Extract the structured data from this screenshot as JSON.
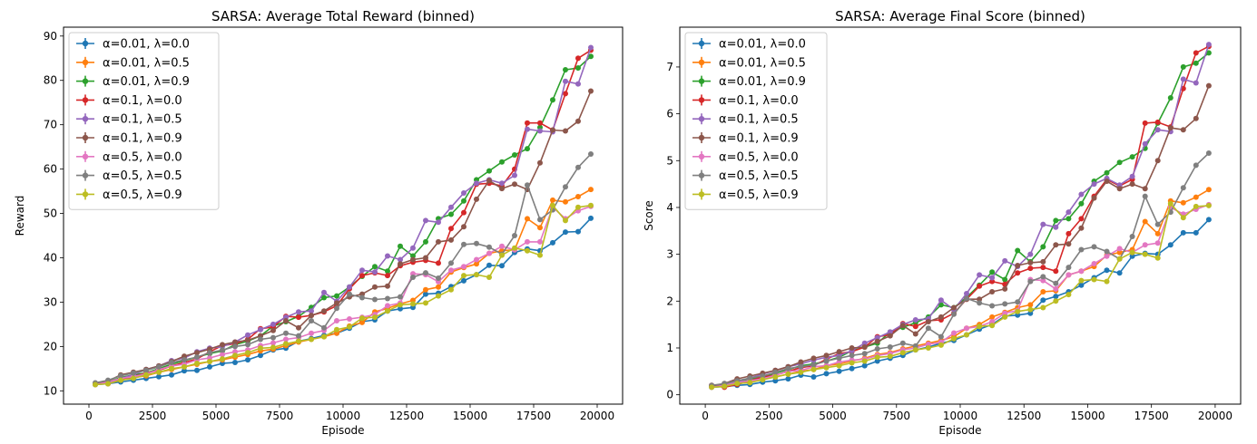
{
  "figure": {
    "background": "#ffffff"
  },
  "chart_data": [
    {
      "type": "line",
      "title": "SARSA: Average Total Reward (binned)",
      "xlabel": "Episode",
      "ylabel": "Reward",
      "xlim": [
        -1000,
        21000
      ],
      "ylim": [
        7,
        92
      ],
      "xticks": [
        0,
        2500,
        5000,
        7500,
        10000,
        12500,
        15000,
        17500,
        20000
      ],
      "xtick_labels": [
        "0",
        "2500",
        "5000",
        "7500",
        "10000",
        "12500",
        "15000",
        "17500",
        "20000"
      ],
      "yticks": [
        10,
        20,
        30,
        40,
        50,
        60,
        70,
        80,
        90
      ],
      "ytick_labels": [
        "10",
        "20",
        "30",
        "40",
        "50",
        "60",
        "70",
        "80",
        "90"
      ],
      "grid": false,
      "legend_position": "upper-left",
      "x": [
        250,
        750,
        1250,
        1750,
        2250,
        2750,
        3250,
        3750,
        4250,
        4750,
        5250,
        5750,
        6250,
        6750,
        7250,
        7750,
        8250,
        8750,
        9250,
        9750,
        10250,
        10750,
        11250,
        11750,
        12250,
        12750,
        13250,
        13750,
        14250,
        14750,
        15250,
        15750,
        16250,
        16750,
        17250,
        17750,
        18250,
        18750,
        19250,
        19750
      ],
      "series": [
        {
          "name": "α=0.01, λ=0.0",
          "color": "#1f77b4",
          "values": [
            11.4,
            11.6,
            12.0,
            12.4,
            12.8,
            13.2,
            13.6,
            14.5,
            14.6,
            15.4,
            16.2,
            16.4,
            17.0,
            18.0,
            19.2,
            19.6,
            21.2,
            21.8,
            22.5,
            23.0,
            24.1,
            25.6,
            26.0,
            28.0,
            28.5,
            28.8,
            31.8,
            32.0,
            33.5,
            34.8,
            36.2,
            38.3,
            38.2,
            41.2,
            42.0,
            41.6,
            43.4,
            45.8,
            45.9,
            48.9
          ]
        },
        {
          "name": "α=0.01, λ=0.5",
          "color": "#ff7f0e",
          "values": [
            11.6,
            11.8,
            12.6,
            13.0,
            13.4,
            14.2,
            14.8,
            15.4,
            16.0,
            16.6,
            17.0,
            17.6,
            18.2,
            19.0,
            19.4,
            20.2,
            21.0,
            21.6,
            22.2,
            23.0,
            24.6,
            25.4,
            27.8,
            28.6,
            29.6,
            30.4,
            32.8,
            33.4,
            36.8,
            37.8,
            38.6,
            41.0,
            41.6,
            41.8,
            48.8,
            46.8,
            53.0,
            52.6,
            53.8,
            55.4
          ]
        },
        {
          "name": "α=0.01, λ=0.9",
          "color": "#2ca02c",
          "values": [
            11.6,
            12.0,
            13.0,
            13.6,
            14.0,
            15.0,
            16.0,
            16.8,
            17.6,
            18.4,
            19.0,
            20.4,
            21.2,
            22.4,
            24.6,
            25.6,
            26.8,
            28.8,
            31.0,
            31.4,
            33.4,
            35.8,
            38.0,
            37.0,
            42.6,
            40.4,
            43.6,
            48.8,
            49.8,
            52.8,
            57.6,
            59.6,
            61.6,
            63.2,
            64.6,
            69.4,
            75.6,
            82.4,
            82.8,
            85.4
          ]
        },
        {
          "name": "α=0.1, λ=0.0",
          "color": "#d62728",
          "values": [
            11.6,
            11.6,
            12.4,
            13.2,
            14.0,
            14.6,
            15.6,
            16.4,
            17.2,
            18.8,
            20.2,
            20.6,
            21.6,
            24.0,
            24.4,
            26.8,
            26.6,
            27.0,
            27.8,
            29.2,
            33.0,
            36.0,
            36.6,
            36.0,
            38.2,
            39.0,
            39.4,
            38.8,
            46.6,
            50.2,
            56.6,
            56.8,
            56.2,
            60.0,
            70.4,
            70.4,
            68.8,
            77.0,
            85.0,
            86.8
          ]
        },
        {
          "name": "α=0.1, λ=0.5",
          "color": "#9467bd",
          "values": [
            11.6,
            11.8,
            12.8,
            13.6,
            14.8,
            15.6,
            16.8,
            17.4,
            18.8,
            19.6,
            20.0,
            21.0,
            22.6,
            23.8,
            25.0,
            26.6,
            27.8,
            28.0,
            32.2,
            30.2,
            33.4,
            37.2,
            36.8,
            40.4,
            39.6,
            42.2,
            48.4,
            48.0,
            51.4,
            54.6,
            56.8,
            57.6,
            56.8,
            58.6,
            69.0,
            68.6,
            68.4,
            79.8,
            79.2,
            87.4
          ]
        },
        {
          "name": "α=0.1, λ=0.9",
          "color": "#8c564b",
          "values": [
            11.6,
            12.2,
            13.6,
            14.2,
            14.8,
            15.6,
            16.6,
            17.8,
            18.6,
            19.4,
            20.4,
            21.0,
            21.4,
            22.4,
            23.6,
            25.8,
            24.2,
            27.0,
            28.0,
            29.8,
            31.2,
            31.8,
            33.4,
            33.6,
            38.6,
            39.6,
            40.0,
            43.6,
            44.0,
            47.0,
            53.2,
            57.4,
            55.6,
            56.6,
            55.4,
            61.4,
            68.8,
            68.6,
            70.8,
            77.6
          ]
        },
        {
          "name": "α=0.5, λ=0.0",
          "color": "#e377c2",
          "values": [
            11.4,
            12.0,
            12.8,
            13.2,
            13.8,
            14.8,
            15.6,
            16.0,
            17.0,
            17.4,
            18.2,
            18.8,
            19.2,
            20.2,
            20.8,
            21.6,
            22.0,
            23.0,
            23.6,
            25.8,
            26.2,
            26.6,
            27.2,
            29.2,
            29.8,
            36.4,
            36.2,
            34.6,
            37.2,
            38.0,
            39.6,
            41.0,
            42.6,
            41.8,
            43.6,
            43.6,
            51.4,
            48.8,
            50.6,
            51.6
          ]
        },
        {
          "name": "α=0.5, λ=0.5",
          "color": "#7f7f7f",
          "values": [
            11.8,
            12.4,
            13.4,
            14.0,
            14.6,
            15.4,
            16.4,
            17.0,
            17.6,
            18.6,
            19.2,
            20.0,
            20.4,
            21.6,
            22.0,
            23.0,
            22.4,
            25.8,
            24.2,
            28.6,
            31.8,
            31.0,
            30.6,
            30.8,
            31.2,
            35.6,
            36.6,
            35.4,
            38.8,
            43.0,
            43.2,
            42.4,
            40.8,
            45.0,
            56.4,
            48.6,
            50.8,
            56.0,
            60.4,
            63.4
          ]
        },
        {
          "name": "α=0.5, λ=0.9",
          "color": "#bcbd22",
          "values": [
            11.4,
            11.6,
            12.4,
            12.8,
            13.6,
            14.2,
            15.0,
            15.4,
            16.2,
            16.6,
            17.2,
            18.0,
            18.6,
            19.6,
            19.8,
            20.6,
            21.2,
            21.6,
            22.2,
            23.8,
            24.4,
            26.4,
            26.6,
            28.0,
            29.4,
            29.6,
            29.8,
            31.4,
            32.8,
            36.0,
            36.2,
            35.6,
            40.6,
            42.2,
            41.6,
            40.6,
            51.8,
            48.4,
            51.4,
            51.8
          ]
        }
      ]
    },
    {
      "type": "line",
      "title": "SARSA: Average Final Score (binned)",
      "xlabel": "Episode",
      "ylabel": "Score",
      "xlim": [
        -1000,
        21000
      ],
      "ylim": [
        -0.2,
        7.85
      ],
      "xticks": [
        0,
        2500,
        5000,
        7500,
        10000,
        12500,
        15000,
        17500,
        20000
      ],
      "xtick_labels": [
        "0",
        "2500",
        "5000",
        "7500",
        "10000",
        "12500",
        "15000",
        "17500",
        "20000"
      ],
      "yticks": [
        0,
        1,
        2,
        3,
        4,
        5,
        6,
        7
      ],
      "ytick_labels": [
        "0",
        "1",
        "2",
        "3",
        "4",
        "5",
        "6",
        "7"
      ],
      "grid": false,
      "legend_position": "upper-left",
      "x": [
        250,
        750,
        1250,
        1750,
        2250,
        2750,
        3250,
        3750,
        4250,
        4750,
        5250,
        5750,
        6250,
        6750,
        7250,
        7750,
        8250,
        8750,
        9250,
        9750,
        10250,
        10750,
        11250,
        11750,
        12250,
        12750,
        13250,
        13750,
        14250,
        14750,
        15250,
        15750,
        16250,
        16750,
        17250,
        17750,
        18250,
        18750,
        19250,
        19750
      ],
      "series": [
        {
          "name": "α=0.01, λ=0.0",
          "color": "#1f77b4",
          "values": [
            0.16,
            0.18,
            0.2,
            0.22,
            0.27,
            0.3,
            0.34,
            0.42,
            0.38,
            0.45,
            0.5,
            0.56,
            0.62,
            0.72,
            0.78,
            0.84,
            0.96,
            1.02,
            1.1,
            1.16,
            1.28,
            1.4,
            1.5,
            1.68,
            1.7,
            1.74,
            2.02,
            2.1,
            2.2,
            2.34,
            2.5,
            2.66,
            2.6,
            2.96,
            3.02,
            3.0,
            3.2,
            3.46,
            3.46,
            3.74
          ]
        },
        {
          "name": "α=0.01, λ=0.5",
          "color": "#ff7f0e",
          "values": [
            0.18,
            0.2,
            0.26,
            0.3,
            0.34,
            0.38,
            0.44,
            0.5,
            0.54,
            0.62,
            0.66,
            0.72,
            0.78,
            0.86,
            0.9,
            0.98,
            1.04,
            1.1,
            1.16,
            1.24,
            1.42,
            1.5,
            1.66,
            1.76,
            1.86,
            1.92,
            2.2,
            2.22,
            2.56,
            2.64,
            2.74,
            2.98,
            3.04,
            3.1,
            3.7,
            3.44,
            4.14,
            4.1,
            4.22,
            4.38
          ]
        },
        {
          "name": "α=0.01, λ=0.9",
          "color": "#2ca02c",
          "values": [
            0.18,
            0.22,
            0.28,
            0.34,
            0.38,
            0.46,
            0.54,
            0.62,
            0.66,
            0.72,
            0.8,
            0.94,
            1.02,
            1.1,
            1.34,
            1.44,
            1.54,
            1.66,
            1.92,
            1.86,
            2.08,
            2.34,
            2.62,
            2.46,
            3.08,
            2.84,
            3.16,
            3.72,
            3.76,
            4.08,
            4.56,
            4.74,
            4.96,
            5.08,
            5.26,
            5.8,
            6.34,
            7.0,
            7.08,
            7.3
          ]
        },
        {
          "name": "α=0.1, λ=0.0",
          "color": "#d62728",
          "values": [
            0.2,
            0.16,
            0.22,
            0.3,
            0.38,
            0.42,
            0.5,
            0.58,
            0.62,
            0.76,
            0.88,
            0.92,
            1.02,
            1.24,
            1.28,
            1.52,
            1.46,
            1.58,
            1.6,
            1.74,
            2.04,
            2.32,
            2.42,
            2.36,
            2.6,
            2.7,
            2.72,
            2.64,
            3.44,
            3.76,
            4.24,
            4.6,
            4.46,
            4.6,
            5.8,
            5.82,
            5.72,
            6.54,
            7.3,
            7.44
          ]
        },
        {
          "name": "α=0.1, λ=0.5",
          "color": "#9467bd",
          "values": [
            0.18,
            0.2,
            0.28,
            0.36,
            0.44,
            0.52,
            0.6,
            0.66,
            0.74,
            0.8,
            0.84,
            0.94,
            1.1,
            1.22,
            1.34,
            1.5,
            1.6,
            1.62,
            2.02,
            1.82,
            2.16,
            2.56,
            2.5,
            2.86,
            2.74,
            3.0,
            3.64,
            3.58,
            3.9,
            4.28,
            4.5,
            4.62,
            4.48,
            4.66,
            5.36,
            5.66,
            5.62,
            6.74,
            6.66,
            7.48
          ]
        },
        {
          "name": "α=0.1, λ=0.9",
          "color": "#8c564b",
          "values": [
            0.18,
            0.24,
            0.34,
            0.4,
            0.46,
            0.52,
            0.6,
            0.7,
            0.78,
            0.84,
            0.92,
            1.0,
            1.02,
            1.14,
            1.26,
            1.48,
            1.3,
            1.56,
            1.66,
            1.86,
            2.04,
            2.04,
            2.2,
            2.26,
            2.76,
            2.82,
            2.84,
            3.2,
            3.22,
            3.56,
            4.2,
            4.56,
            4.4,
            4.5,
            4.4,
            5.0,
            5.7,
            5.66,
            5.9,
            6.6
          ]
        },
        {
          "name": "α=0.5, λ=0.0",
          "color": "#e377c2",
          "values": [
            0.16,
            0.2,
            0.26,
            0.3,
            0.34,
            0.42,
            0.5,
            0.52,
            0.6,
            0.62,
            0.7,
            0.74,
            0.76,
            0.84,
            0.88,
            0.96,
            1.0,
            1.08,
            1.12,
            1.32,
            1.42,
            1.46,
            1.56,
            1.74,
            1.8,
            2.46,
            2.44,
            2.26,
            2.56,
            2.64,
            2.8,
            2.96,
            3.12,
            3.04,
            3.2,
            3.24,
            4.0,
            3.86,
            3.96,
            4.06
          ]
        },
        {
          "name": "α=0.5, λ=0.5",
          "color": "#7f7f7f",
          "values": [
            0.2,
            0.24,
            0.3,
            0.36,
            0.4,
            0.48,
            0.56,
            0.6,
            0.64,
            0.72,
            0.78,
            0.84,
            0.88,
            0.98,
            1.02,
            1.1,
            1.04,
            1.42,
            1.24,
            1.72,
            2.06,
            1.96,
            1.9,
            1.94,
            1.98,
            2.42,
            2.52,
            2.38,
            2.72,
            3.1,
            3.16,
            3.06,
            2.9,
            3.38,
            4.24,
            3.64,
            3.9,
            4.42,
            4.9,
            5.16
          ]
        },
        {
          "name": "α=0.5, λ=0.9",
          "color": "#bcbd22",
          "values": [
            0.16,
            0.18,
            0.24,
            0.26,
            0.32,
            0.38,
            0.44,
            0.48,
            0.54,
            0.58,
            0.62,
            0.68,
            0.72,
            0.8,
            0.82,
            0.9,
            0.96,
            1.0,
            1.06,
            1.2,
            1.28,
            1.46,
            1.48,
            1.66,
            1.78,
            1.82,
            1.86,
            2.0,
            2.14,
            2.44,
            2.46,
            2.42,
            2.9,
            3.04,
            3.0,
            2.92,
            4.08,
            3.78,
            4.02,
            4.04
          ]
        }
      ]
    }
  ]
}
